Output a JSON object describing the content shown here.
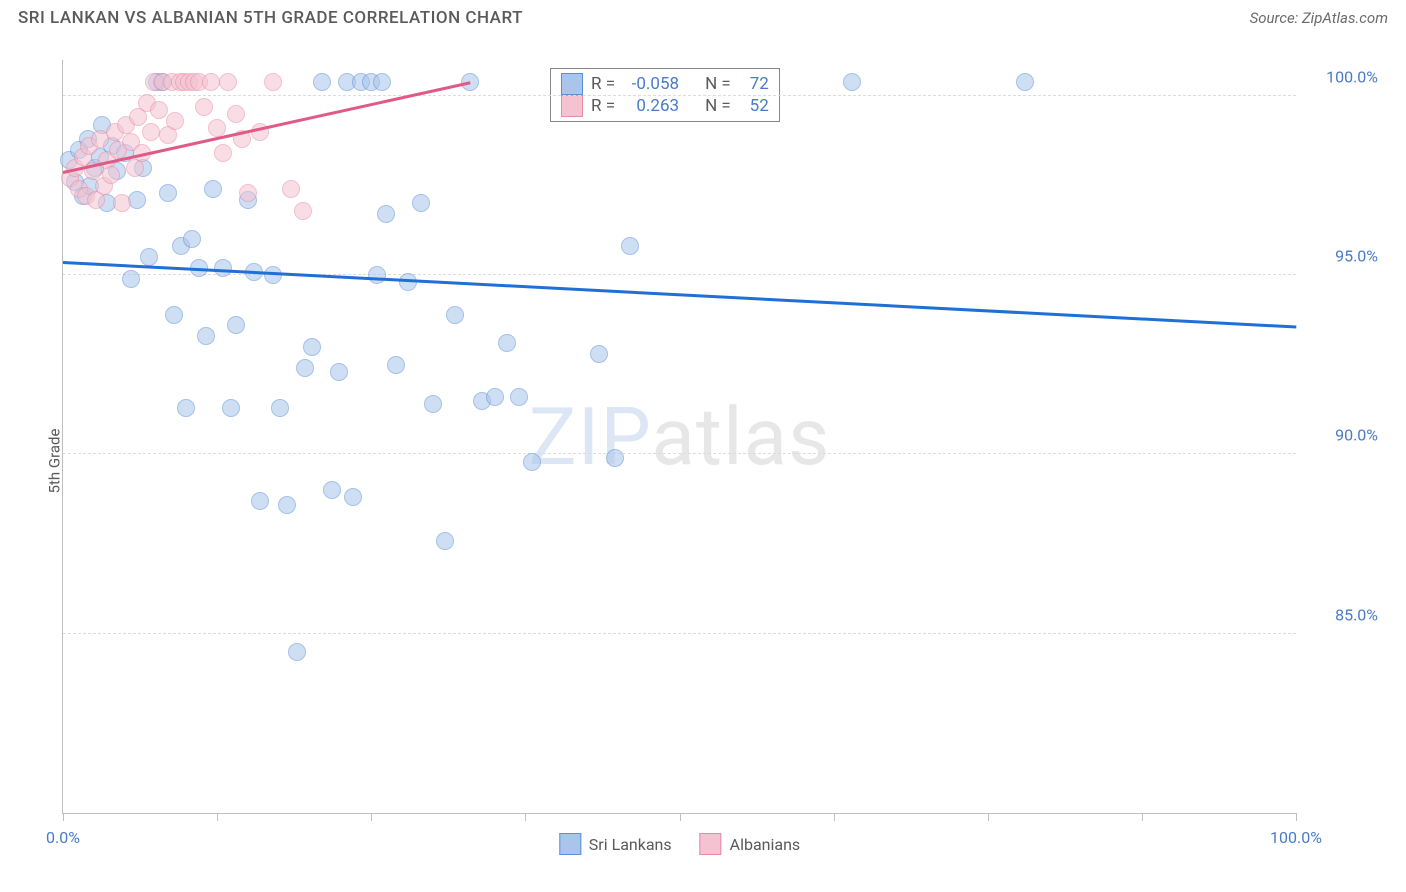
{
  "header": {
    "title": "SRI LANKAN VS ALBANIAN 5TH GRADE CORRELATION CHART",
    "source": "Source: ZipAtlas.com"
  },
  "axes": {
    "y_label": "5th Grade",
    "x_min": 0,
    "x_max": 100,
    "y_min": 80,
    "y_max": 101,
    "x_ticks": [
      0,
      12.5,
      25,
      37.5,
      50,
      62.5,
      75,
      87.5,
      100
    ],
    "x_tick_labels": {
      "0": "0.0%",
      "100": "100.0%"
    },
    "y_ticks": [
      85,
      90,
      95,
      100
    ],
    "y_tick_labels": {
      "85": "85.0%",
      "90": "90.0%",
      "95": "95.0%",
      "100": "100.0%"
    }
  },
  "style": {
    "background": "#ffffff",
    "grid_color": "#dcdcdc",
    "axis_color": "#bfbfbf",
    "tick_label_color": "#4a7bc8",
    "marker_radius": 9,
    "marker_opacity": 0.55,
    "line_width": 2.5
  },
  "series": [
    {
      "name": "Sri Lankans",
      "r": "-0.058",
      "n": "72",
      "color_fill": "#a9c5eb",
      "color_stroke": "#5b8fd6",
      "trend_color": "#1f6fd6",
      "trend": {
        "x1": 0,
        "y1": 95.4,
        "x2": 100,
        "y2": 93.6
      },
      "points": [
        [
          0.5,
          98.2
        ],
        [
          1.0,
          97.6
        ],
        [
          1.3,
          98.5
        ],
        [
          1.6,
          97.2
        ],
        [
          2.0,
          98.8
        ],
        [
          2.2,
          97.5
        ],
        [
          2.6,
          98.0
        ],
        [
          3.0,
          98.3
        ],
        [
          3.2,
          99.2
        ],
        [
          3.6,
          97.0
        ],
        [
          4.0,
          98.6
        ],
        [
          4.4,
          97.9
        ],
        [
          5.0,
          98.4
        ],
        [
          5.5,
          94.9
        ],
        [
          6.0,
          97.1
        ],
        [
          6.5,
          98.0
        ],
        [
          7.0,
          95.5
        ],
        [
          7.6,
          100.4
        ],
        [
          8.0,
          100.4
        ],
        [
          8.5,
          97.3
        ],
        [
          9.0,
          93.9
        ],
        [
          9.6,
          95.8
        ],
        [
          10.0,
          91.3
        ],
        [
          10.5,
          96.0
        ],
        [
          11.0,
          95.2
        ],
        [
          11.6,
          93.3
        ],
        [
          12.2,
          97.4
        ],
        [
          13.0,
          95.2
        ],
        [
          13.6,
          91.3
        ],
        [
          14.0,
          93.6
        ],
        [
          15.0,
          97.1
        ],
        [
          15.5,
          95.1
        ],
        [
          16.0,
          88.7
        ],
        [
          17.0,
          95.0
        ],
        [
          17.6,
          91.3
        ],
        [
          18.2,
          88.6
        ],
        [
          19.0,
          84.5
        ],
        [
          19.6,
          92.4
        ],
        [
          20.2,
          93.0
        ],
        [
          21.0,
          100.4
        ],
        [
          21.8,
          89.0
        ],
        [
          22.4,
          92.3
        ],
        [
          23.0,
          100.4
        ],
        [
          23.5,
          88.8
        ],
        [
          24.2,
          100.4
        ],
        [
          25.0,
          100.4
        ],
        [
          25.5,
          95.0
        ],
        [
          25.9,
          100.4
        ],
        [
          26.2,
          96.7
        ],
        [
          27.0,
          92.5
        ],
        [
          28.0,
          94.8
        ],
        [
          29.0,
          97.0
        ],
        [
          30.0,
          91.4
        ],
        [
          31.0,
          87.6
        ],
        [
          31.8,
          93.9
        ],
        [
          33.0,
          100.4
        ],
        [
          34.0,
          91.5
        ],
        [
          35.0,
          91.6
        ],
        [
          36.0,
          93.1
        ],
        [
          37.0,
          91.6
        ],
        [
          38.0,
          89.8
        ],
        [
          43.5,
          92.8
        ],
        [
          44.8,
          89.9
        ],
        [
          46.0,
          95.8
        ],
        [
          64.0,
          100.4
        ],
        [
          78.0,
          100.4
        ]
      ]
    },
    {
      "name": "Albanians",
      "r": "0.263",
      "n": "52",
      "color_fill": "#f4c2d0",
      "color_stroke": "#e98ba6",
      "trend_color": "#e05a85",
      "trend": {
        "x1": 0,
        "y1": 97.9,
        "x2": 33,
        "y2": 100.4
      },
      "points": [
        [
          0.6,
          97.7
        ],
        [
          1.0,
          98.0
        ],
        [
          1.3,
          97.4
        ],
        [
          1.6,
          98.3
        ],
        [
          1.9,
          97.2
        ],
        [
          2.1,
          98.6
        ],
        [
          2.4,
          97.9
        ],
        [
          2.7,
          97.1
        ],
        [
          3.0,
          98.8
        ],
        [
          3.3,
          97.5
        ],
        [
          3.6,
          98.2
        ],
        [
          3.9,
          97.8
        ],
        [
          4.2,
          99.0
        ],
        [
          4.5,
          98.5
        ],
        [
          4.8,
          97.0
        ],
        [
          5.1,
          99.2
        ],
        [
          5.5,
          98.7
        ],
        [
          5.8,
          98.0
        ],
        [
          6.1,
          99.4
        ],
        [
          6.4,
          98.4
        ],
        [
          6.8,
          99.8
        ],
        [
          7.1,
          99.0
        ],
        [
          7.4,
          100.4
        ],
        [
          7.8,
          99.6
        ],
        [
          8.1,
          100.4
        ],
        [
          8.5,
          98.9
        ],
        [
          8.8,
          100.4
        ],
        [
          9.1,
          99.3
        ],
        [
          9.5,
          100.4
        ],
        [
          9.8,
          100.4
        ],
        [
          10.2,
          100.4
        ],
        [
          10.6,
          100.4
        ],
        [
          11.0,
          100.4
        ],
        [
          11.4,
          99.7
        ],
        [
          12.0,
          100.4
        ],
        [
          12.5,
          99.1
        ],
        [
          13.0,
          98.4
        ],
        [
          13.4,
          100.4
        ],
        [
          14.0,
          99.5
        ],
        [
          14.5,
          98.8
        ],
        [
          15.0,
          97.3
        ],
        [
          16.0,
          99.0
        ],
        [
          17.0,
          100.4
        ],
        [
          18.5,
          97.4
        ],
        [
          19.5,
          96.8
        ]
      ]
    }
  ],
  "legend_top": {
    "r_label": "R =",
    "n_label": "N ="
  },
  "legend_bottom": {
    "items": [
      "Sri Lankans",
      "Albanians"
    ]
  },
  "watermark": {
    "part1": "ZIP",
    "part2": "atlas"
  }
}
